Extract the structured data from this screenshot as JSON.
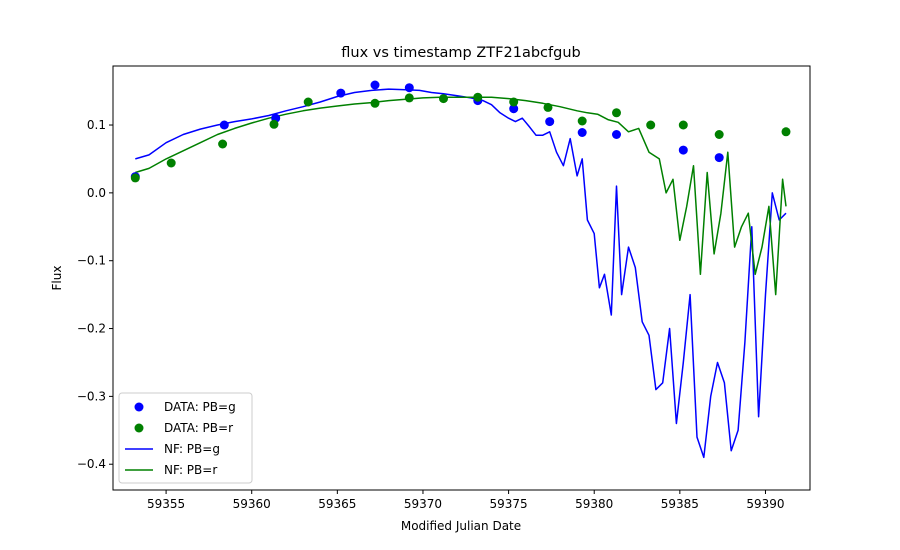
{
  "chart_data": {
    "type": "line",
    "title": "flux vs timestamp ZTF21abcfgub",
    "xlabel": "Modified Julian Date",
    "ylabel": "Flux",
    "xlim": [
      59351.9,
      59392.6
    ],
    "ylim": [
      -0.438,
      0.187
    ],
    "xticks": [
      59355,
      59360,
      59365,
      59370,
      59375,
      59380,
      59385,
      59390
    ],
    "xtick_labels": [
      "59355",
      "59360",
      "59365",
      "59370",
      "59375",
      "59380",
      "59385",
      "59390"
    ],
    "yticks": [
      0.1,
      0.0,
      -0.1,
      -0.2,
      -0.3,
      -0.4
    ],
    "ytick_labels": [
      "0.1",
      "0.0",
      "−0.1",
      "−0.2",
      "−0.3",
      "−0.4"
    ],
    "grid": false,
    "legend_position": "lower-left",
    "colors": {
      "g": "#0000ff",
      "r": "#008000"
    },
    "scatter_series": [
      {
        "name": "DATA: PB=g",
        "color": "#0000ff",
        "x": [
          59353.2,
          59358.4,
          59361.4,
          59365.2,
          59367.2,
          59369.2,
          59373.2,
          59375.3,
          59377.4,
          59379.3,
          59381.3,
          59385.2,
          59387.3
        ],
        "y": [
          0.024,
          0.1,
          0.11,
          0.147,
          0.159,
          0.155,
          0.136,
          0.124,
          0.105,
          0.089,
          0.086,
          0.063,
          0.052
        ]
      },
      {
        "name": "DATA: PB=r",
        "color": "#008000",
        "x": [
          59353.2,
          59355.3,
          59358.3,
          59361.3,
          59363.3,
          59367.2,
          59369.2,
          59371.2,
          59373.2,
          59375.3,
          59377.3,
          59379.3,
          59381.3,
          59383.3,
          59385.2,
          59387.3,
          59391.2
        ],
        "y": [
          0.022,
          0.044,
          0.072,
          0.101,
          0.134,
          0.132,
          0.14,
          0.139,
          0.141,
          0.134,
          0.126,
          0.106,
          0.118,
          0.1,
          0.1,
          0.086,
          0.09
        ]
      }
    ],
    "line_series": [
      {
        "name": "NF: PB=g",
        "color": "#0000ff",
        "x": [
          59353.2,
          59354,
          59355,
          59356,
          59357,
          59358,
          59359,
          59360,
          59361,
          59362,
          59363,
          59364,
          59365,
          59366,
          59367,
          59368,
          59369,
          59369.8,
          59370.5,
          59371.2,
          59372,
          59372.8,
          59373.5,
          59374,
          59374.5,
          59375,
          59375.4,
          59375.8,
          59376.2,
          59376.6,
          59377,
          59377.4,
          59377.8,
          59378.2,
          59378.6,
          59379,
          59379.3,
          59379.6,
          59380,
          59380.3,
          59380.6,
          59381,
          59381.3,
          59381.6,
          59382,
          59382.4,
          59382.8,
          59383.2,
          59383.6,
          59384,
          59384.4,
          59384.8,
          59385.2,
          59385.6,
          59386,
          59386.4,
          59386.8,
          59387.2,
          59387.6,
          59388,
          59388.4,
          59388.8,
          59389.2,
          59389.6,
          59390,
          59390.4,
          59390.8,
          59391.2
        ],
        "y": [
          0.05,
          0.056,
          0.074,
          0.086,
          0.094,
          0.1,
          0.105,
          0.109,
          0.114,
          0.121,
          0.127,
          0.134,
          0.142,
          0.148,
          0.151,
          0.153,
          0.152,
          0.151,
          0.148,
          0.146,
          0.143,
          0.14,
          0.136,
          0.13,
          0.118,
          0.11,
          0.105,
          0.11,
          0.098,
          0.085,
          0.085,
          0.09,
          0.06,
          0.04,
          0.08,
          0.025,
          0.05,
          -0.04,
          -0.06,
          -0.14,
          -0.12,
          -0.18,
          0.01,
          -0.15,
          -0.08,
          -0.11,
          -0.19,
          -0.21,
          -0.29,
          -0.28,
          -0.2,
          -0.34,
          -0.25,
          -0.15,
          -0.36,
          -0.39,
          -0.3,
          -0.25,
          -0.28,
          -0.38,
          -0.35,
          -0.22,
          -0.05,
          -0.33,
          -0.15,
          0.0,
          -0.04,
          -0.03
        ]
      },
      {
        "name": "NF: PB=r",
        "color": "#008000",
        "x": [
          59353.2,
          59354,
          59355,
          59356,
          59357,
          59358,
          59359,
          59360,
          59361,
          59362,
          59363,
          59364,
          59365,
          59366,
          59367,
          59368,
          59369,
          59370,
          59371,
          59372,
          59373,
          59374,
          59375,
          59376,
          59377,
          59378,
          59379,
          59379.6,
          59380.2,
          59380.8,
          59381.4,
          59382,
          59382.6,
          59383.2,
          59383.8,
          59384.2,
          59384.6,
          59385,
          59385.4,
          59385.8,
          59386.2,
          59386.6,
          59387,
          59387.4,
          59387.8,
          59388.2,
          59388.6,
          59389,
          59389.4,
          59389.8,
          59390.2,
          59390.6,
          59391,
          59391.2
        ],
        "y": [
          0.03,
          0.036,
          0.05,
          0.062,
          0.074,
          0.086,
          0.095,
          0.103,
          0.11,
          0.116,
          0.121,
          0.125,
          0.128,
          0.131,
          0.133,
          0.136,
          0.138,
          0.14,
          0.141,
          0.141,
          0.141,
          0.141,
          0.139,
          0.136,
          0.132,
          0.127,
          0.121,
          0.118,
          0.116,
          0.108,
          0.104,
          0.09,
          0.095,
          0.06,
          0.05,
          0.0,
          0.02,
          -0.07,
          -0.02,
          0.04,
          -0.12,
          0.03,
          -0.09,
          -0.03,
          0.06,
          -0.08,
          -0.05,
          -0.03,
          -0.12,
          -0.08,
          -0.02,
          -0.15,
          0.02,
          -0.02
        ]
      }
    ],
    "legend": [
      {
        "label": "DATA: PB=g",
        "kind": "marker",
        "color": "#0000ff"
      },
      {
        "label": "DATA: PB=r",
        "kind": "marker",
        "color": "#008000"
      },
      {
        "label": "NF: PB=g",
        "kind": "line",
        "color": "#0000ff"
      },
      {
        "label": "NF: PB=r",
        "kind": "line",
        "color": "#008000"
      }
    ]
  }
}
